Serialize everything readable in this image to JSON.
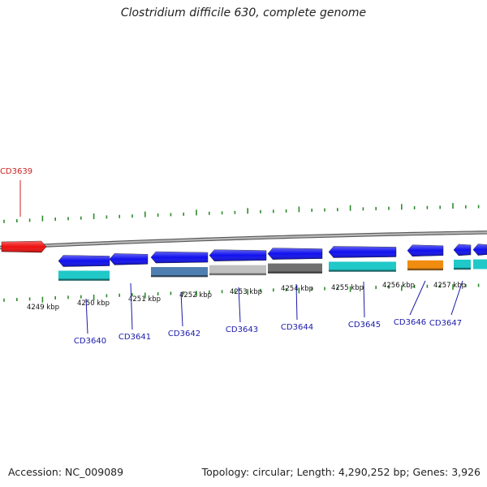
{
  "title": "Clostridium difficile 630, complete genome",
  "footer": {
    "accession": "Accession: NC_009089",
    "summary": "Topology: circular; Length: 4,290,252 bp; Genes: 3,926"
  },
  "colors": {
    "backbone": "#8a8a8a",
    "tick": "#2e8b2e",
    "gene_blue": "#1010ee",
    "gene_red": "#ee1010",
    "label_blue": "#1a1aaa",
    "label_red": "#cc2222",
    "cyan": "#20c8c8",
    "orange": "#f08c10",
    "steel": "#4f7fb0",
    "lightgray": "#c0c0c0",
    "darkgray": "#707070"
  },
  "scale_labels": [
    "4249 kbp",
    "4250 kbp",
    "4251 kbp",
    "4252 kbp",
    "4253 kbp",
    "4254 kbp",
    "4255 kbp",
    "4256 kbp",
    "4257 kbp"
  ],
  "genes": [
    {
      "id": "CD3639",
      "color": "red"
    },
    {
      "id": "CD3640",
      "color": "blue"
    },
    {
      "id": "CD3641",
      "color": "blue"
    },
    {
      "id": "CD3642",
      "color": "blue"
    },
    {
      "id": "CD3643",
      "color": "blue"
    },
    {
      "id": "CD3644",
      "color": "blue"
    },
    {
      "id": "CD3645",
      "color": "blue"
    },
    {
      "id": "CD3646",
      "color": "blue"
    },
    {
      "id": "CD3647",
      "color": "blue"
    }
  ],
  "feature_colors": [
    "cyan",
    "steel",
    "lightgray",
    "darkgray",
    "cyan",
    "orange",
    "cyan"
  ]
}
